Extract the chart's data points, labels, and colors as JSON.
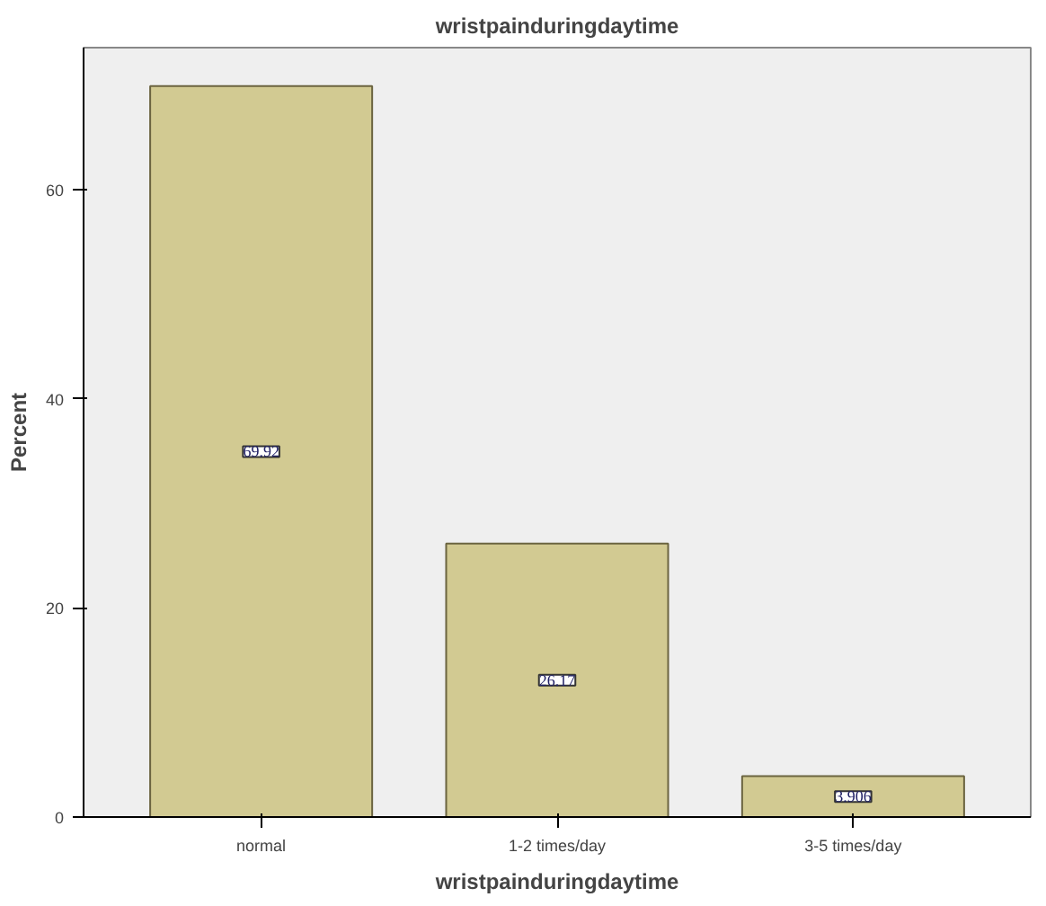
{
  "chart_data": {
    "type": "bar",
    "title": "wristpainduringdaytime",
    "xlabel": "wristpainduringdaytime",
    "ylabel": "Percent",
    "categories": [
      "normal",
      "1-2 times/day",
      "3-5 times/day"
    ],
    "values": [
      69.92,
      26.17,
      3.906
    ],
    "value_labels": [
      "69.92",
      "26.17",
      "3.906"
    ],
    "color": "#d2ca92",
    "ylim": [
      0,
      73.6
    ],
    "yticks": [
      0,
      20,
      40,
      60
    ],
    "grid": false
  }
}
